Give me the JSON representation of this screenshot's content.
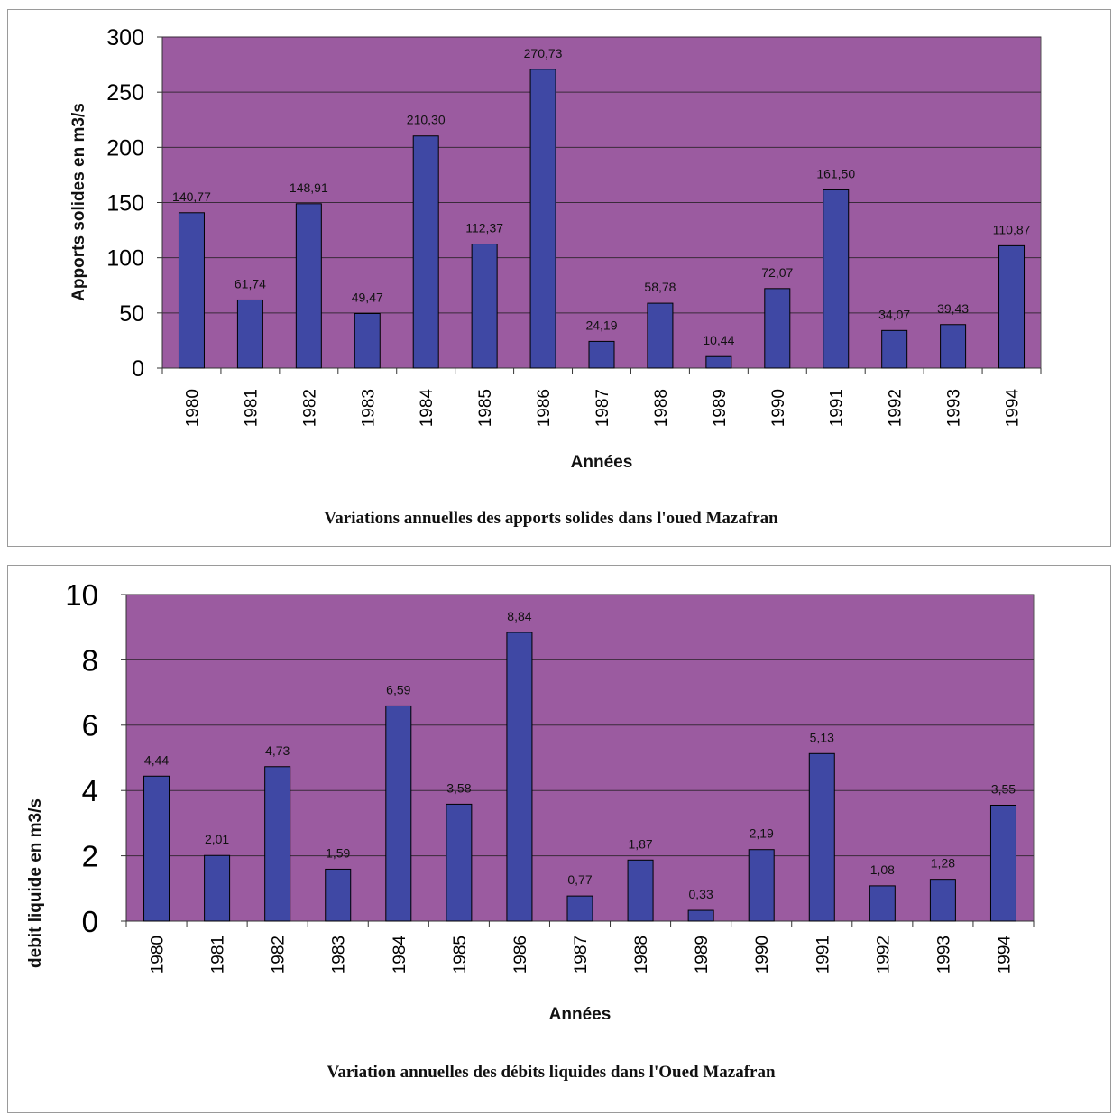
{
  "chart_data": [
    {
      "type": "bar",
      "categories": [
        "1980",
        "1981",
        "1982",
        "1983",
        "1984",
        "1985",
        "1986",
        "1987",
        "1988",
        "1989",
        "1990",
        "1991",
        "1992",
        "1993",
        "1994"
      ],
      "values": [
        140.77,
        61.74,
        148.91,
        49.47,
        210.3,
        112.37,
        270.73,
        24.19,
        58.78,
        10.44,
        72.07,
        161.5,
        34.07,
        39.43,
        110.87
      ],
      "data_labels": [
        "140,77",
        "61,74",
        "148,91",
        "49,47",
        "210,30",
        "112,37",
        "270,73",
        "24,19",
        "58,78",
        "10,44",
        "72,07",
        "161,50",
        "34,07",
        "39,43",
        "110,87"
      ],
      "title": "Variations annuelles des apports solides dans l'oued Mazafran",
      "xlabel": "Années",
      "ylabel": "Apports solides en m3/s",
      "ylim": [
        0,
        300
      ],
      "yticks": [
        "0",
        "50",
        "100",
        "150",
        "200",
        "250",
        "300"
      ],
      "grid": true,
      "legend": "none",
      "colors": {
        "bar": "#3f48a4",
        "plot_bg": "#9b5ba0"
      }
    },
    {
      "type": "bar",
      "categories": [
        "1980",
        "1981",
        "1982",
        "1983",
        "1984",
        "1985",
        "1986",
        "1987",
        "1988",
        "1989",
        "1990",
        "1991",
        "1992",
        "1993",
        "1994"
      ],
      "values": [
        4.44,
        2.01,
        4.73,
        1.59,
        6.59,
        3.58,
        8.84,
        0.77,
        1.87,
        0.33,
        2.19,
        5.13,
        1.08,
        1.28,
        3.55
      ],
      "data_labels": [
        "4,44",
        "2,01",
        "4,73",
        "1,59",
        "6,59",
        "3,58",
        "8,84",
        "0,77",
        "1,87",
        "0,33",
        "2,19",
        "5,13",
        "1,08",
        "1,28",
        "3,55"
      ],
      "title": "Variation annuelles des débits liquides dans l'Oued Mazafran",
      "xlabel": "Années",
      "ylabel": "debit liquide en m3/s",
      "ylim": [
        0,
        10
      ],
      "yticks": [
        "0",
        "2",
        "4",
        "6",
        "8",
        "10"
      ],
      "grid": true,
      "legend": "none",
      "colors": {
        "bar": "#3f48a4",
        "plot_bg": "#9b5ba0"
      }
    }
  ]
}
